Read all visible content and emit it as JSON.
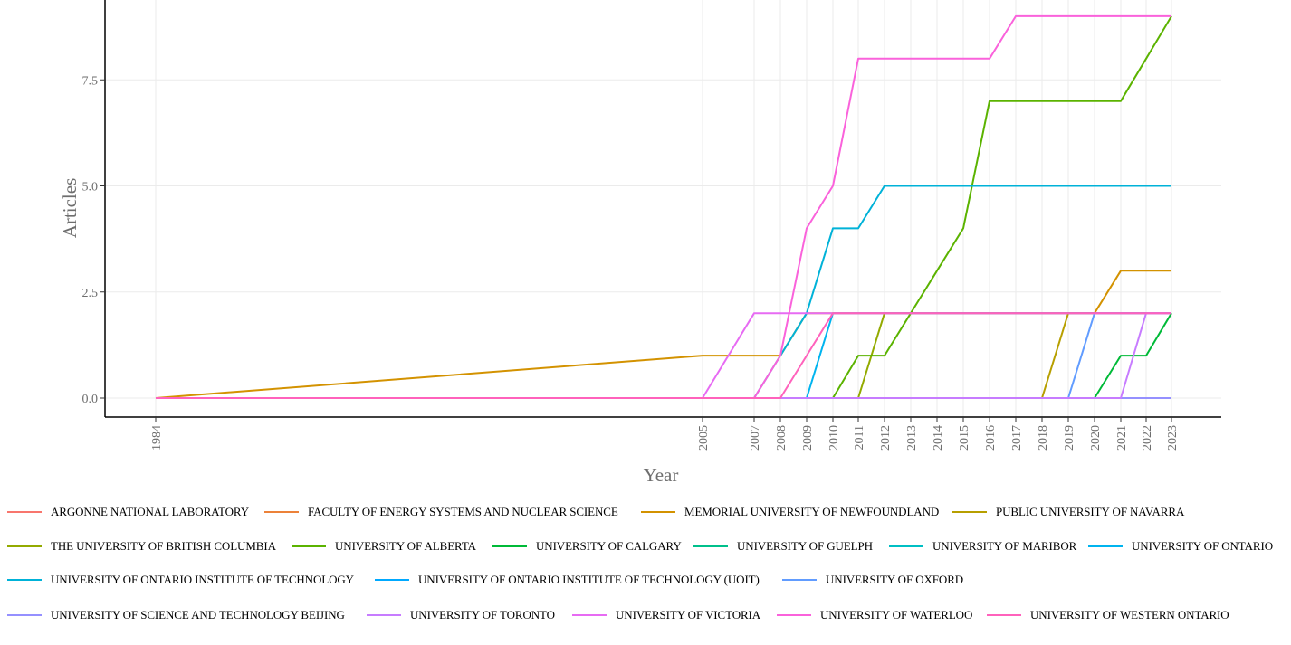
{
  "chart_data": {
    "type": "line",
    "xlabel": "Year",
    "ylabel": "Articles",
    "x": [
      1984,
      2005,
      2007,
      2008,
      2009,
      2010,
      2011,
      2012,
      2013,
      2014,
      2015,
      2016,
      2017,
      2018,
      2019,
      2020,
      2021,
      2022,
      2023
    ],
    "ylim": [
      0,
      9
    ],
    "yticks": [
      0,
      2.5,
      5,
      7.5
    ],
    "ytick_labels": [
      "0.0",
      "2.5",
      "5.0",
      "7.5"
    ],
    "grid": true,
    "legend_position": "bottom",
    "series": [
      {
        "name": "ARGONNE NATIONAL LABORATORY",
        "color": "#F8766D",
        "values": [
          0,
          0,
          0,
          0,
          0,
          0,
          0,
          0,
          0,
          0,
          0,
          0,
          0,
          0,
          0,
          0,
          0,
          0,
          0
        ]
      },
      {
        "name": "FACULTY OF ENERGY SYSTEMS AND NUCLEAR SCIENCE",
        "color": "#EC8239",
        "values": [
          0,
          0,
          0,
          0,
          0,
          0,
          0,
          0,
          0,
          0,
          0,
          0,
          0,
          0,
          0,
          0,
          0,
          0,
          0
        ]
      },
      {
        "name": "MEMORIAL UNIVERSITY OF NEWFOUNDLAND",
        "color": "#D39200",
        "values": [
          0,
          1,
          1,
          1,
          2,
          2,
          2,
          2,
          2,
          2,
          2,
          2,
          2,
          2,
          2,
          2,
          3,
          3,
          3
        ]
      },
      {
        "name": "PUBLIC UNIVERSITY OF NAVARRA",
        "color": "#B79F00",
        "values": [
          0,
          0,
          0,
          0,
          0,
          0,
          0,
          0,
          0,
          0,
          0,
          0,
          0,
          0,
          2,
          2,
          2,
          2,
          2
        ]
      },
      {
        "name": "THE UNIVERSITY OF BRITISH COLUMBIA",
        "color": "#93AA00",
        "values": [
          0,
          0,
          0,
          0,
          0,
          0,
          0,
          2,
          2,
          2,
          2,
          2,
          2,
          2,
          2,
          2,
          2,
          2,
          2
        ]
      },
      {
        "name": "UNIVERSITY OF ALBERTA",
        "color": "#5BB300",
        "values": [
          0,
          0,
          0,
          0,
          0,
          0,
          1,
          1,
          2,
          3,
          4,
          7,
          7,
          7,
          7,
          7,
          7,
          8,
          9
        ]
      },
      {
        "name": "UNIVERSITY OF CALGARY",
        "color": "#00BA38",
        "values": [
          0,
          0,
          0,
          0,
          0,
          0,
          0,
          0,
          0,
          0,
          0,
          0,
          0,
          0,
          0,
          0,
          1,
          1,
          2
        ]
      },
      {
        "name": "UNIVERSITY OF GUELPH",
        "color": "#00C08B",
        "values": [
          0,
          0,
          0,
          0,
          0,
          0,
          0,
          0,
          0,
          0,
          0,
          0,
          0,
          0,
          0,
          0,
          0,
          0,
          0
        ]
      },
      {
        "name": "UNIVERSITY OF MARIBOR",
        "color": "#00BFC4",
        "values": [
          0,
          0,
          0,
          0,
          0,
          0,
          0,
          0,
          0,
          0,
          0,
          0,
          0,
          0,
          0,
          0,
          0,
          0,
          0
        ]
      },
      {
        "name": "UNIVERSITY OF ONTARIO",
        "color": "#00B4EF",
        "values": [
          0,
          0,
          0,
          0,
          0,
          2,
          2,
          2,
          2,
          2,
          2,
          2,
          2,
          2,
          2,
          2,
          2,
          2,
          2
        ]
      },
      {
        "name": "UNIVERSITY OF ONTARIO INSTITUTE OF TECHNOLOGY",
        "color": "#00B2D8",
        "values": [
          0,
          0,
          0,
          1,
          2,
          4,
          4,
          5,
          5,
          5,
          5,
          5,
          5,
          5,
          5,
          5,
          5,
          5,
          5
        ]
      },
      {
        "name": "UNIVERSITY OF ONTARIO INSTITUTE OF TECHNOLOGY (UOIT)",
        "color": "#00A9FF",
        "values": [
          0,
          0,
          0,
          0,
          0,
          0,
          0,
          0,
          0,
          0,
          0,
          0,
          0,
          0,
          0,
          0,
          0,
          0,
          0
        ]
      },
      {
        "name": "UNIVERSITY OF OXFORD",
        "color": "#619CFF",
        "values": [
          0,
          0,
          0,
          0,
          0,
          0,
          0,
          0,
          0,
          0,
          0,
          0,
          0,
          0,
          0,
          2,
          2,
          2,
          2
        ]
      },
      {
        "name": "UNIVERSITY OF SCIENCE AND TECHNOLOGY BEIJING",
        "color": "#9590FF",
        "values": [
          0,
          0,
          0,
          0,
          0,
          0,
          0,
          0,
          0,
          0,
          0,
          0,
          0,
          0,
          0,
          0,
          0,
          0,
          0
        ]
      },
      {
        "name": "UNIVERSITY OF TORONTO",
        "color": "#C77CFF",
        "values": [
          0,
          0,
          0,
          0,
          0,
          0,
          0,
          0,
          0,
          0,
          0,
          0,
          0,
          0,
          0,
          0,
          0,
          2,
          2
        ]
      },
      {
        "name": "UNIVERSITY OF VICTORIA",
        "color": "#E76BF3",
        "values": [
          0,
          0,
          2,
          2,
          2,
          2,
          2,
          2,
          2,
          2,
          2,
          2,
          2,
          2,
          2,
          2,
          2,
          2,
          2
        ]
      },
      {
        "name": "UNIVERSITY OF WATERLOO",
        "color": "#FA62DB",
        "values": [
          0,
          0,
          0,
          1,
          4,
          5,
          8,
          8,
          8,
          8,
          8,
          8,
          9,
          9,
          9,
          9,
          9,
          9,
          9
        ]
      },
      {
        "name": "UNIVERSITY OF WESTERN ONTARIO",
        "color": "#FF62BC",
        "values": [
          0,
          0,
          0,
          0,
          1,
          2,
          2,
          2,
          2,
          2,
          2,
          2,
          2,
          2,
          2,
          2,
          2,
          2,
          2
        ]
      }
    ]
  }
}
